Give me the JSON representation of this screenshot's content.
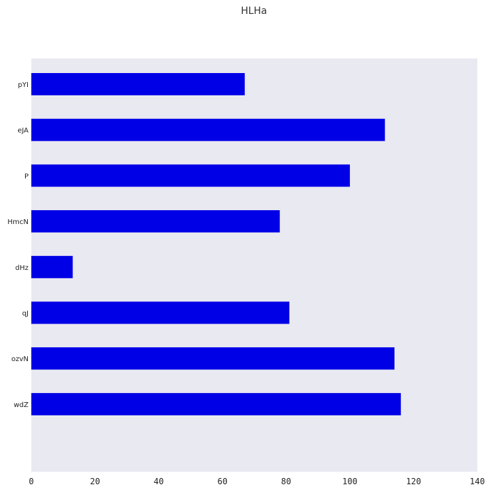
{
  "chart_data": {
    "type": "bar",
    "orientation": "horizontal",
    "title": "HLHa",
    "xlabel": "",
    "ylabel": "",
    "categories": [
      "pYI",
      "eJA",
      "P",
      "HmcN",
      "dHz",
      "qJ",
      "ozvN",
      "wdZ"
    ],
    "values": [
      67,
      111,
      100,
      78,
      13,
      81,
      114,
      116
    ],
    "xlim": [
      0,
      140
    ],
    "xticks": [
      0,
      20,
      40,
      60,
      80,
      100,
      120,
      140
    ],
    "grid": false,
    "legend": "none",
    "colors": {
      "bar": "#0000e6",
      "plot_background": "#e9e9f2"
    }
  }
}
